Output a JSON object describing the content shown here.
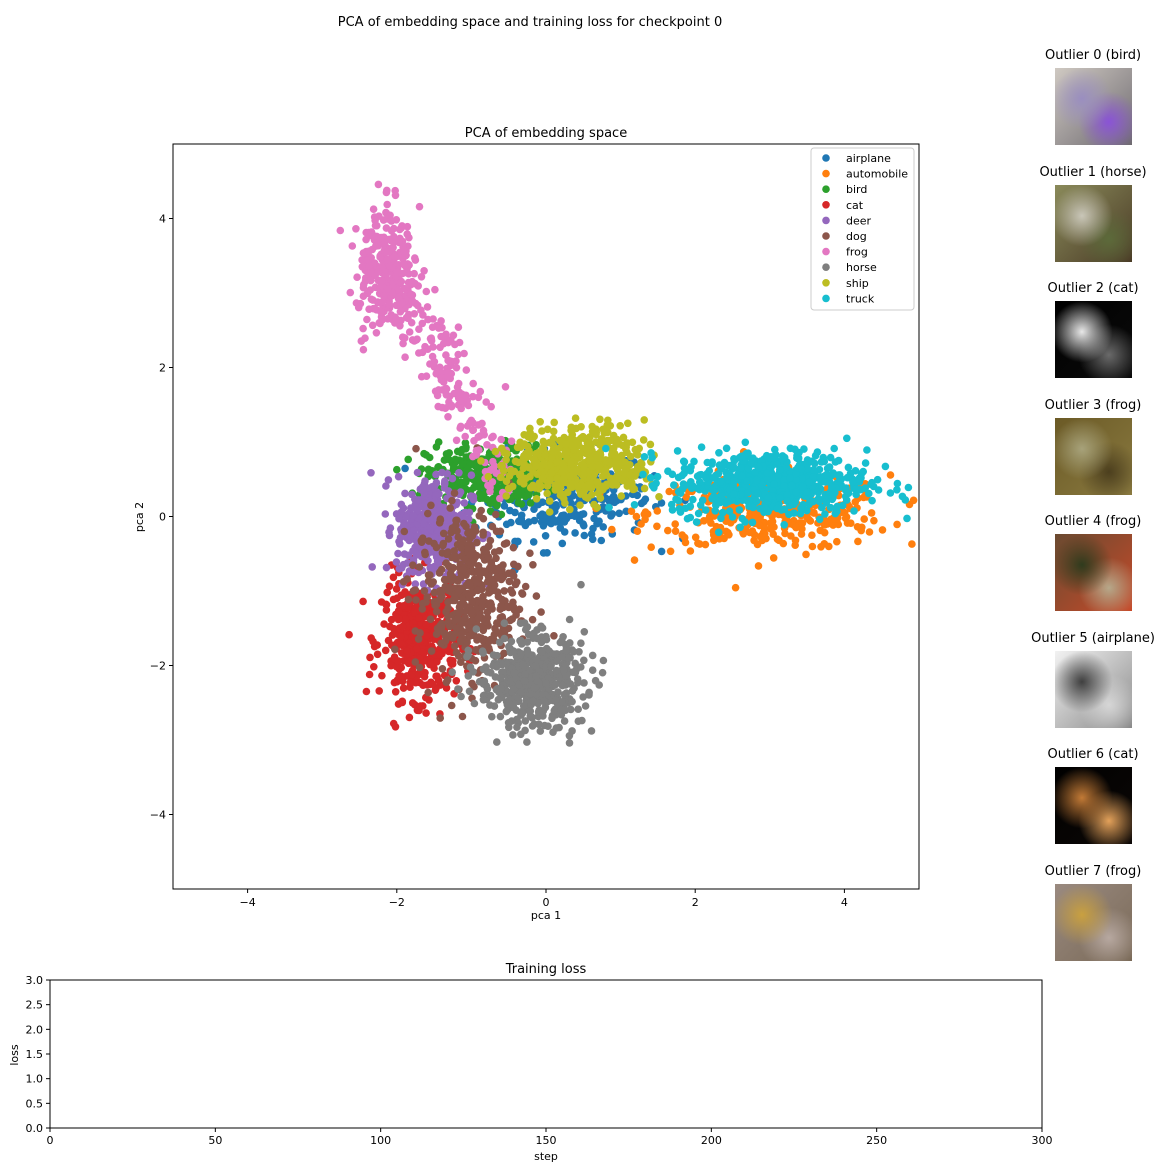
{
  "suptitle": "PCA of embedding space and training loss for checkpoint 0",
  "chart_data": [
    {
      "type": "scatter",
      "title": "PCA of embedding space",
      "xlabel": "pca 1",
      "ylabel": "pca 2",
      "xlim": [
        -5,
        5
      ],
      "ylim": [
        -5,
        5
      ],
      "xticks": [
        -4,
        -2,
        0,
        2,
        4
      ],
      "yticks": [
        -4,
        -2,
        0,
        2,
        4
      ],
      "grid": false,
      "legend_position": "top-right",
      "series": [
        {
          "name": "airplane",
          "color": "#1f77b4",
          "center": [
            0.2,
            0.3
          ],
          "spread": [
            0.6,
            0.3
          ],
          "n": 320
        },
        {
          "name": "automobile",
          "color": "#ff7f0e",
          "center": [
            3.0,
            0.05
          ],
          "spread": [
            0.8,
            0.25
          ],
          "n": 380
        },
        {
          "name": "bird",
          "color": "#2ca02c",
          "center": [
            -0.8,
            0.55
          ],
          "spread": [
            0.4,
            0.2
          ],
          "n": 320
        },
        {
          "name": "cat",
          "color": "#d62728",
          "center": [
            -1.7,
            -1.65
          ],
          "spread": [
            0.25,
            0.4
          ],
          "n": 420
        },
        {
          "name": "deer",
          "color": "#9467bd",
          "center": [
            -1.5,
            -0.15
          ],
          "spread": [
            0.25,
            0.35
          ],
          "n": 420
        },
        {
          "name": "dog",
          "color": "#8c564b",
          "center": [
            -1.05,
            -1.05
          ],
          "spread": [
            0.35,
            0.55
          ],
          "n": 460
        },
        {
          "name": "frog",
          "color": "#e377c2",
          "center": [
            -2.15,
            3.3
          ],
          "spread": [
            0.2,
            0.45
          ],
          "n": 460
        },
        {
          "name": "horse",
          "color": "#7f7f7f",
          "center": [
            -0.2,
            -2.2
          ],
          "spread": [
            0.35,
            0.3
          ],
          "n": 520
        },
        {
          "name": "ship",
          "color": "#bcbd22",
          "center": [
            0.45,
            0.7
          ],
          "spread": [
            0.45,
            0.25
          ],
          "n": 520
        },
        {
          "name": "truck",
          "color": "#17becf",
          "center": [
            3.0,
            0.45
          ],
          "spread": [
            0.65,
            0.22
          ],
          "n": 600
        }
      ]
    },
    {
      "type": "line",
      "title": "Training loss",
      "xlabel": "step",
      "ylabel": "loss",
      "xlim": [
        0,
        300
      ],
      "ylim": [
        0,
        3
      ],
      "xticks": [
        0,
        50,
        100,
        150,
        200,
        250,
        300
      ],
      "yticks": [
        0.0,
        0.5,
        1.0,
        1.5,
        2.0,
        2.5,
        3.0
      ],
      "series": []
    }
  ],
  "outliers": [
    {
      "label": "Outlier 0 (bird)",
      "colors": [
        "#cfc9c2",
        "#6e6a70",
        "#9a8ec0",
        "#8a53d6"
      ]
    },
    {
      "label": "Outlier 1 (horse)",
      "colors": [
        "#8a8a5a",
        "#4a3b26",
        "#c9c6b8",
        "#5c6a3a"
      ]
    },
    {
      "label": "Outlier 2 (cat)",
      "colors": [
        "#000000",
        "#0b0b0b",
        "#e8e8e8",
        "#6a6a6a"
      ]
    },
    {
      "label": "Outlier 3 (frog)",
      "colors": [
        "#6b5a26",
        "#8a7a40",
        "#a7a27a",
        "#4c3f1e"
      ]
    },
    {
      "label": "Outlier 4 (frog)",
      "colors": [
        "#6a4a30",
        "#c74a2a",
        "#2f3b1d",
        "#b6a88a"
      ]
    },
    {
      "label": "Outlier 5 (airplane)",
      "colors": [
        "#f2f2f2",
        "#8a8a8a",
        "#3f3f3f",
        "#d6d6d6"
      ]
    },
    {
      "label": "Outlier 6 (cat)",
      "colors": [
        "#000000",
        "#0c0806",
        "#c27a36",
        "#e3a15a"
      ]
    },
    {
      "label": "Outlier 7 (frog)",
      "colors": [
        "#9a8a80",
        "#7a6a58",
        "#c9a040",
        "#b7a8a0"
      ]
    }
  ]
}
